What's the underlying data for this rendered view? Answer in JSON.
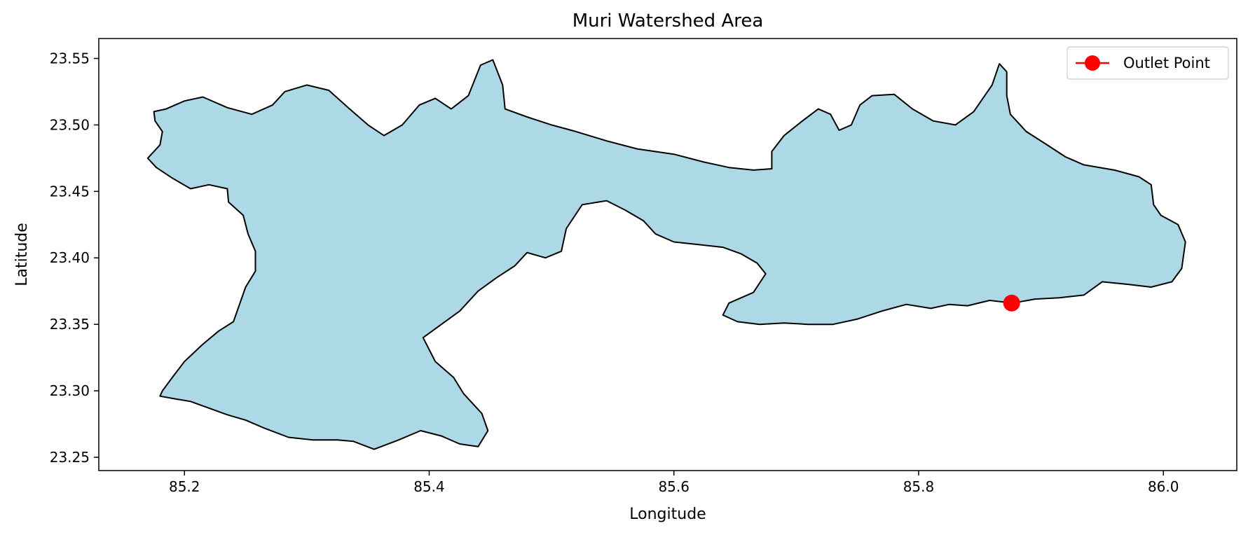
{
  "title": "Muri Watershed Area",
  "chart_data": {
    "type": "map",
    "title": "Muri Watershed Area",
    "xlabel": "Longitude",
    "ylabel": "Latitude",
    "xlim": [
      85.13,
      86.06
    ],
    "ylim": [
      23.24,
      23.565
    ],
    "xticks": [
      85.2,
      85.4,
      85.6,
      85.8,
      86.0
    ],
    "xtick_labels": [
      "85.2",
      "85.4",
      "85.6",
      "85.8",
      "86.0"
    ],
    "yticks": [
      23.25,
      23.3,
      23.35,
      23.4,
      23.45,
      23.5,
      23.55
    ],
    "ytick_labels": [
      "23.25",
      "23.30",
      "23.35",
      "23.40",
      "23.45",
      "23.50",
      "23.55"
    ],
    "grid": false,
    "legend_position": "top-right",
    "legend": [
      {
        "label": "Outlet Point",
        "color": "#ff0000",
        "marker": "circle"
      }
    ],
    "watershed": {
      "fill": "#add8e6",
      "edge": "#000000",
      "boundary": [
        [
          85.175,
          23.51
        ],
        [
          85.185,
          23.512
        ],
        [
          85.2,
          23.518
        ],
        [
          85.215,
          23.521
        ],
        [
          85.235,
          23.513
        ],
        [
          85.255,
          23.508
        ],
        [
          85.272,
          23.515
        ],
        [
          85.282,
          23.525
        ],
        [
          85.3,
          23.53
        ],
        [
          85.318,
          23.526
        ],
        [
          85.335,
          23.512
        ],
        [
          85.35,
          23.5
        ],
        [
          85.363,
          23.492
        ],
        [
          85.378,
          23.5
        ],
        [
          85.392,
          23.515
        ],
        [
          85.405,
          23.52
        ],
        [
          85.418,
          23.512
        ],
        [
          85.432,
          23.522
        ],
        [
          85.442,
          23.545
        ],
        [
          85.452,
          23.549
        ],
        [
          85.46,
          23.53
        ],
        [
          85.462,
          23.512
        ],
        [
          85.48,
          23.506
        ],
        [
          85.5,
          23.5
        ],
        [
          85.52,
          23.495
        ],
        [
          85.545,
          23.488
        ],
        [
          85.57,
          23.482
        ],
        [
          85.6,
          23.478
        ],
        [
          85.625,
          23.472
        ],
        [
          85.645,
          23.468
        ],
        [
          85.665,
          23.466
        ],
        [
          85.68,
          23.467
        ],
        [
          85.68,
          23.48
        ],
        [
          85.69,
          23.492
        ],
        [
          85.705,
          23.503
        ],
        [
          85.718,
          23.512
        ],
        [
          85.728,
          23.508
        ],
        [
          85.735,
          23.496
        ],
        [
          85.745,
          23.5
        ],
        [
          85.752,
          23.515
        ],
        [
          85.762,
          23.522
        ],
        [
          85.78,
          23.523
        ],
        [
          85.795,
          23.512
        ],
        [
          85.812,
          23.503
        ],
        [
          85.83,
          23.5
        ],
        [
          85.845,
          23.51
        ],
        [
          85.86,
          23.53
        ],
        [
          85.866,
          23.546
        ],
        [
          85.872,
          23.54
        ],
        [
          85.872,
          23.522
        ],
        [
          85.875,
          23.508
        ],
        [
          85.888,
          23.495
        ],
        [
          85.905,
          23.485
        ],
        [
          85.92,
          23.476
        ],
        [
          85.935,
          23.47
        ],
        [
          85.96,
          23.466
        ],
        [
          85.98,
          23.461
        ],
        [
          85.99,
          23.455
        ],
        [
          85.992,
          23.44
        ],
        [
          85.998,
          23.432
        ],
        [
          86.012,
          23.425
        ],
        [
          86.018,
          23.412
        ],
        [
          86.015,
          23.392
        ],
        [
          86.007,
          23.382
        ],
        [
          85.99,
          23.378
        ],
        [
          85.972,
          23.38
        ],
        [
          85.95,
          23.382
        ],
        [
          85.935,
          23.372
        ],
        [
          85.915,
          23.37
        ],
        [
          85.895,
          23.369
        ],
        [
          85.877,
          23.366
        ],
        [
          85.858,
          23.368
        ],
        [
          85.84,
          23.364
        ],
        [
          85.825,
          23.365
        ],
        [
          85.81,
          23.362
        ],
        [
          85.79,
          23.365
        ],
        [
          85.77,
          23.36
        ],
        [
          85.75,
          23.354
        ],
        [
          85.73,
          23.35
        ],
        [
          85.71,
          23.35
        ],
        [
          85.69,
          23.351
        ],
        [
          85.67,
          23.35
        ],
        [
          85.652,
          23.352
        ],
        [
          85.64,
          23.357
        ],
        [
          85.645,
          23.366
        ],
        [
          85.665,
          23.374
        ],
        [
          85.675,
          23.388
        ],
        [
          85.668,
          23.396
        ],
        [
          85.655,
          23.403
        ],
        [
          85.64,
          23.408
        ],
        [
          85.62,
          23.41
        ],
        [
          85.6,
          23.412
        ],
        [
          85.585,
          23.418
        ],
        [
          85.575,
          23.428
        ],
        [
          85.56,
          23.436
        ],
        [
          85.545,
          23.443
        ],
        [
          85.525,
          23.44
        ],
        [
          85.512,
          23.422
        ],
        [
          85.508,
          23.405
        ],
        [
          85.495,
          23.4
        ],
        [
          85.48,
          23.404
        ],
        [
          85.47,
          23.394
        ],
        [
          85.455,
          23.385
        ],
        [
          85.44,
          23.375
        ],
        [
          85.425,
          23.36
        ],
        [
          85.41,
          23.35
        ],
        [
          85.395,
          23.34
        ],
        [
          85.405,
          23.322
        ],
        [
          85.42,
          23.31
        ],
        [
          85.428,
          23.298
        ],
        [
          85.443,
          23.283
        ],
        [
          85.448,
          23.27
        ],
        [
          85.44,
          23.258
        ],
        [
          85.425,
          23.26
        ],
        [
          85.41,
          23.266
        ],
        [
          85.393,
          23.27
        ],
        [
          85.375,
          23.263
        ],
        [
          85.355,
          23.256
        ],
        [
          85.338,
          23.262
        ],
        [
          85.325,
          23.263
        ],
        [
          85.305,
          23.263
        ],
        [
          85.285,
          23.265
        ],
        [
          85.265,
          23.272
        ],
        [
          85.25,
          23.278
        ],
        [
          85.235,
          23.282
        ],
        [
          85.22,
          23.287
        ],
        [
          85.205,
          23.292
        ],
        [
          85.192,
          23.294
        ],
        [
          85.18,
          23.296
        ],
        [
          85.182,
          23.3
        ],
        [
          85.19,
          23.31
        ],
        [
          85.2,
          23.322
        ],
        [
          85.215,
          23.335
        ],
        [
          85.228,
          23.345
        ],
        [
          85.24,
          23.352
        ],
        [
          85.245,
          23.365
        ],
        [
          85.25,
          23.378
        ],
        [
          85.258,
          23.39
        ],
        [
          85.258,
          23.405
        ],
        [
          85.252,
          23.418
        ],
        [
          85.248,
          23.432
        ],
        [
          85.236,
          23.442
        ],
        [
          85.235,
          23.452
        ],
        [
          85.22,
          23.455
        ],
        [
          85.205,
          23.452
        ],
        [
          85.19,
          23.46
        ],
        [
          85.177,
          23.468
        ],
        [
          85.17,
          23.475
        ],
        [
          85.18,
          23.485
        ],
        [
          85.182,
          23.495
        ],
        [
          85.176,
          23.503
        ],
        [
          85.175,
          23.51
        ]
      ]
    },
    "outlet_point": {
      "label": "Outlet Point",
      "x": 85.876,
      "y": 23.366,
      "color": "#ff0000"
    }
  }
}
